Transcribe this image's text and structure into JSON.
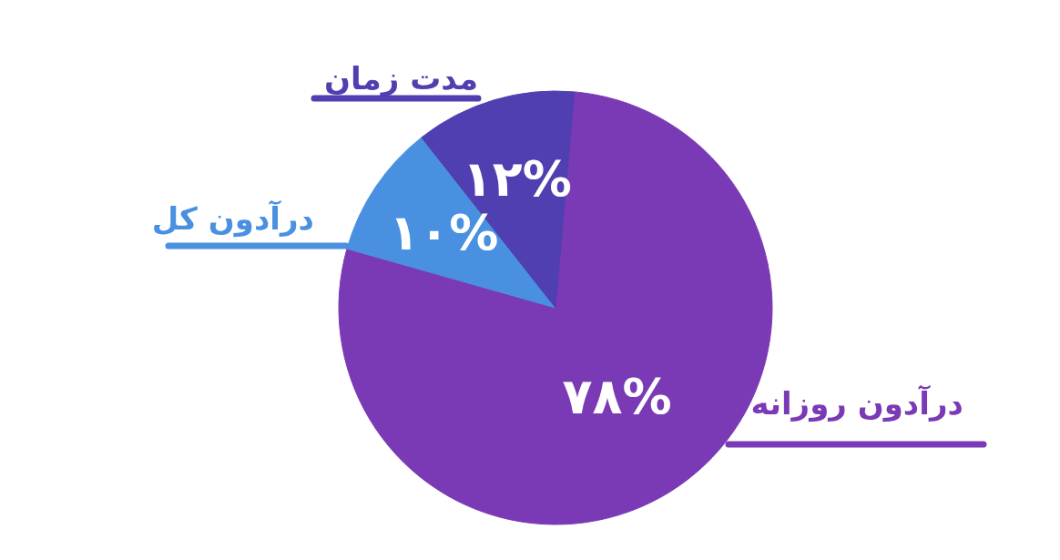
{
  "chart_data": {
    "type": "pie",
    "categories": [
      "درآدون روزانه",
      "درآدون کل",
      "مدت زمان"
    ],
    "values": [
      78,
      10,
      12
    ],
    "colors": [
      "#7b3ab5",
      "#4a90e0",
      "#4f3fb0"
    ],
    "value_labels": [
      "۷۸%",
      "۱۰%",
      "۱۲%"
    ]
  }
}
